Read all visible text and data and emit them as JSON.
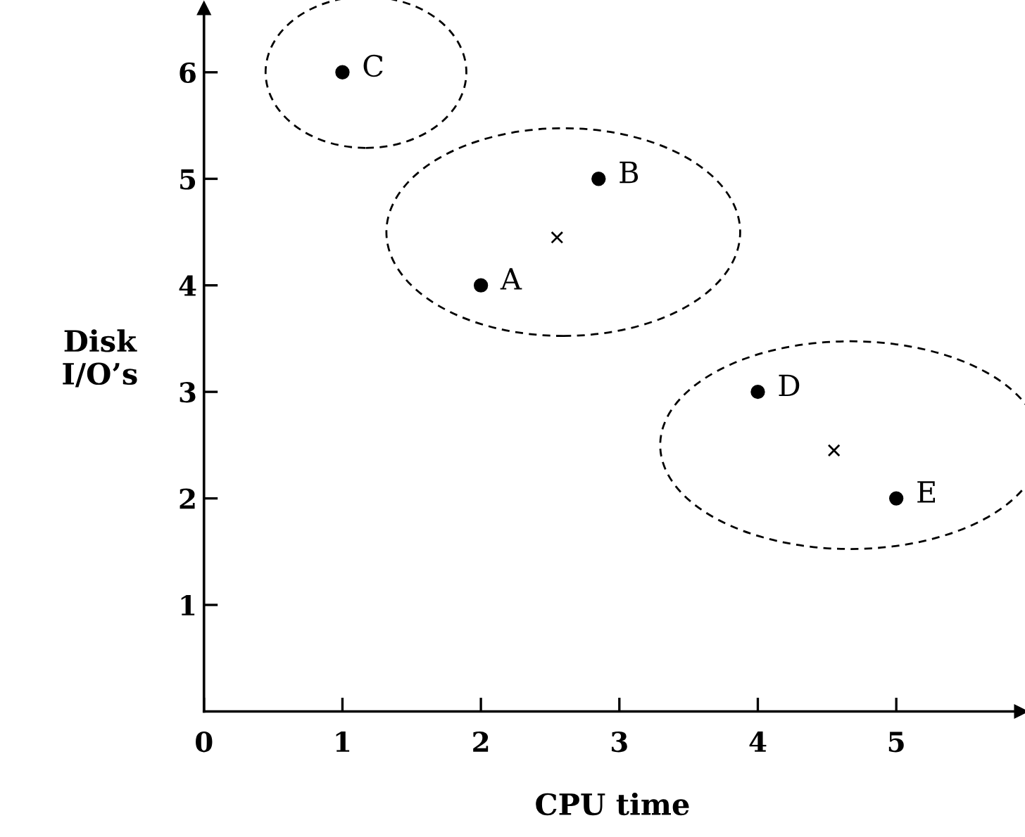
{
  "chart_data": {
    "type": "scatter",
    "xlabel": "CPU time",
    "ylabel": "Disk\nI/O’s",
    "series": [
      {
        "color": "#000000",
        "marker": "circle",
        "x": [
          1
        ],
        "values": [
          6
        ]
      },
      {
        "color": "#000000",
        "marker": "circle",
        "x": [
          2,
          2.85
        ],
        "values": [
          4,
          5
        ]
      },
      {
        "color": "#000000",
        "marker": "circle",
        "x": [
          4,
          5
        ],
        "values": [
          3,
          2
        ]
      },
      {
        "color": "#000000",
        "marker": "cross",
        "x": [
          2.55,
          4.55
        ],
        "values": [
          4.45,
          2.45
        ]
      }
    ],
    "annotations": [
      {
        "text": "C",
        "x": 1,
        "y": 6
      },
      {
        "text": "A",
        "x": 2,
        "y": 4
      },
      {
        "text": "B",
        "x": 2.85,
        "y": 5
      },
      {
        "text": "D",
        "x": 4,
        "y": 3
      },
      {
        "text": "E",
        "x": 5,
        "y": 2
      }
    ],
    "xlim": [
      0,
      5.9
    ],
    "ylim": [
      0,
      6.6
    ],
    "xticks": [
      0,
      1,
      2,
      3,
      4,
      5
    ],
    "yticks": [
      1,
      2,
      3,
      4,
      5,
      6
    ],
    "grid": false,
    "legend": false
  }
}
